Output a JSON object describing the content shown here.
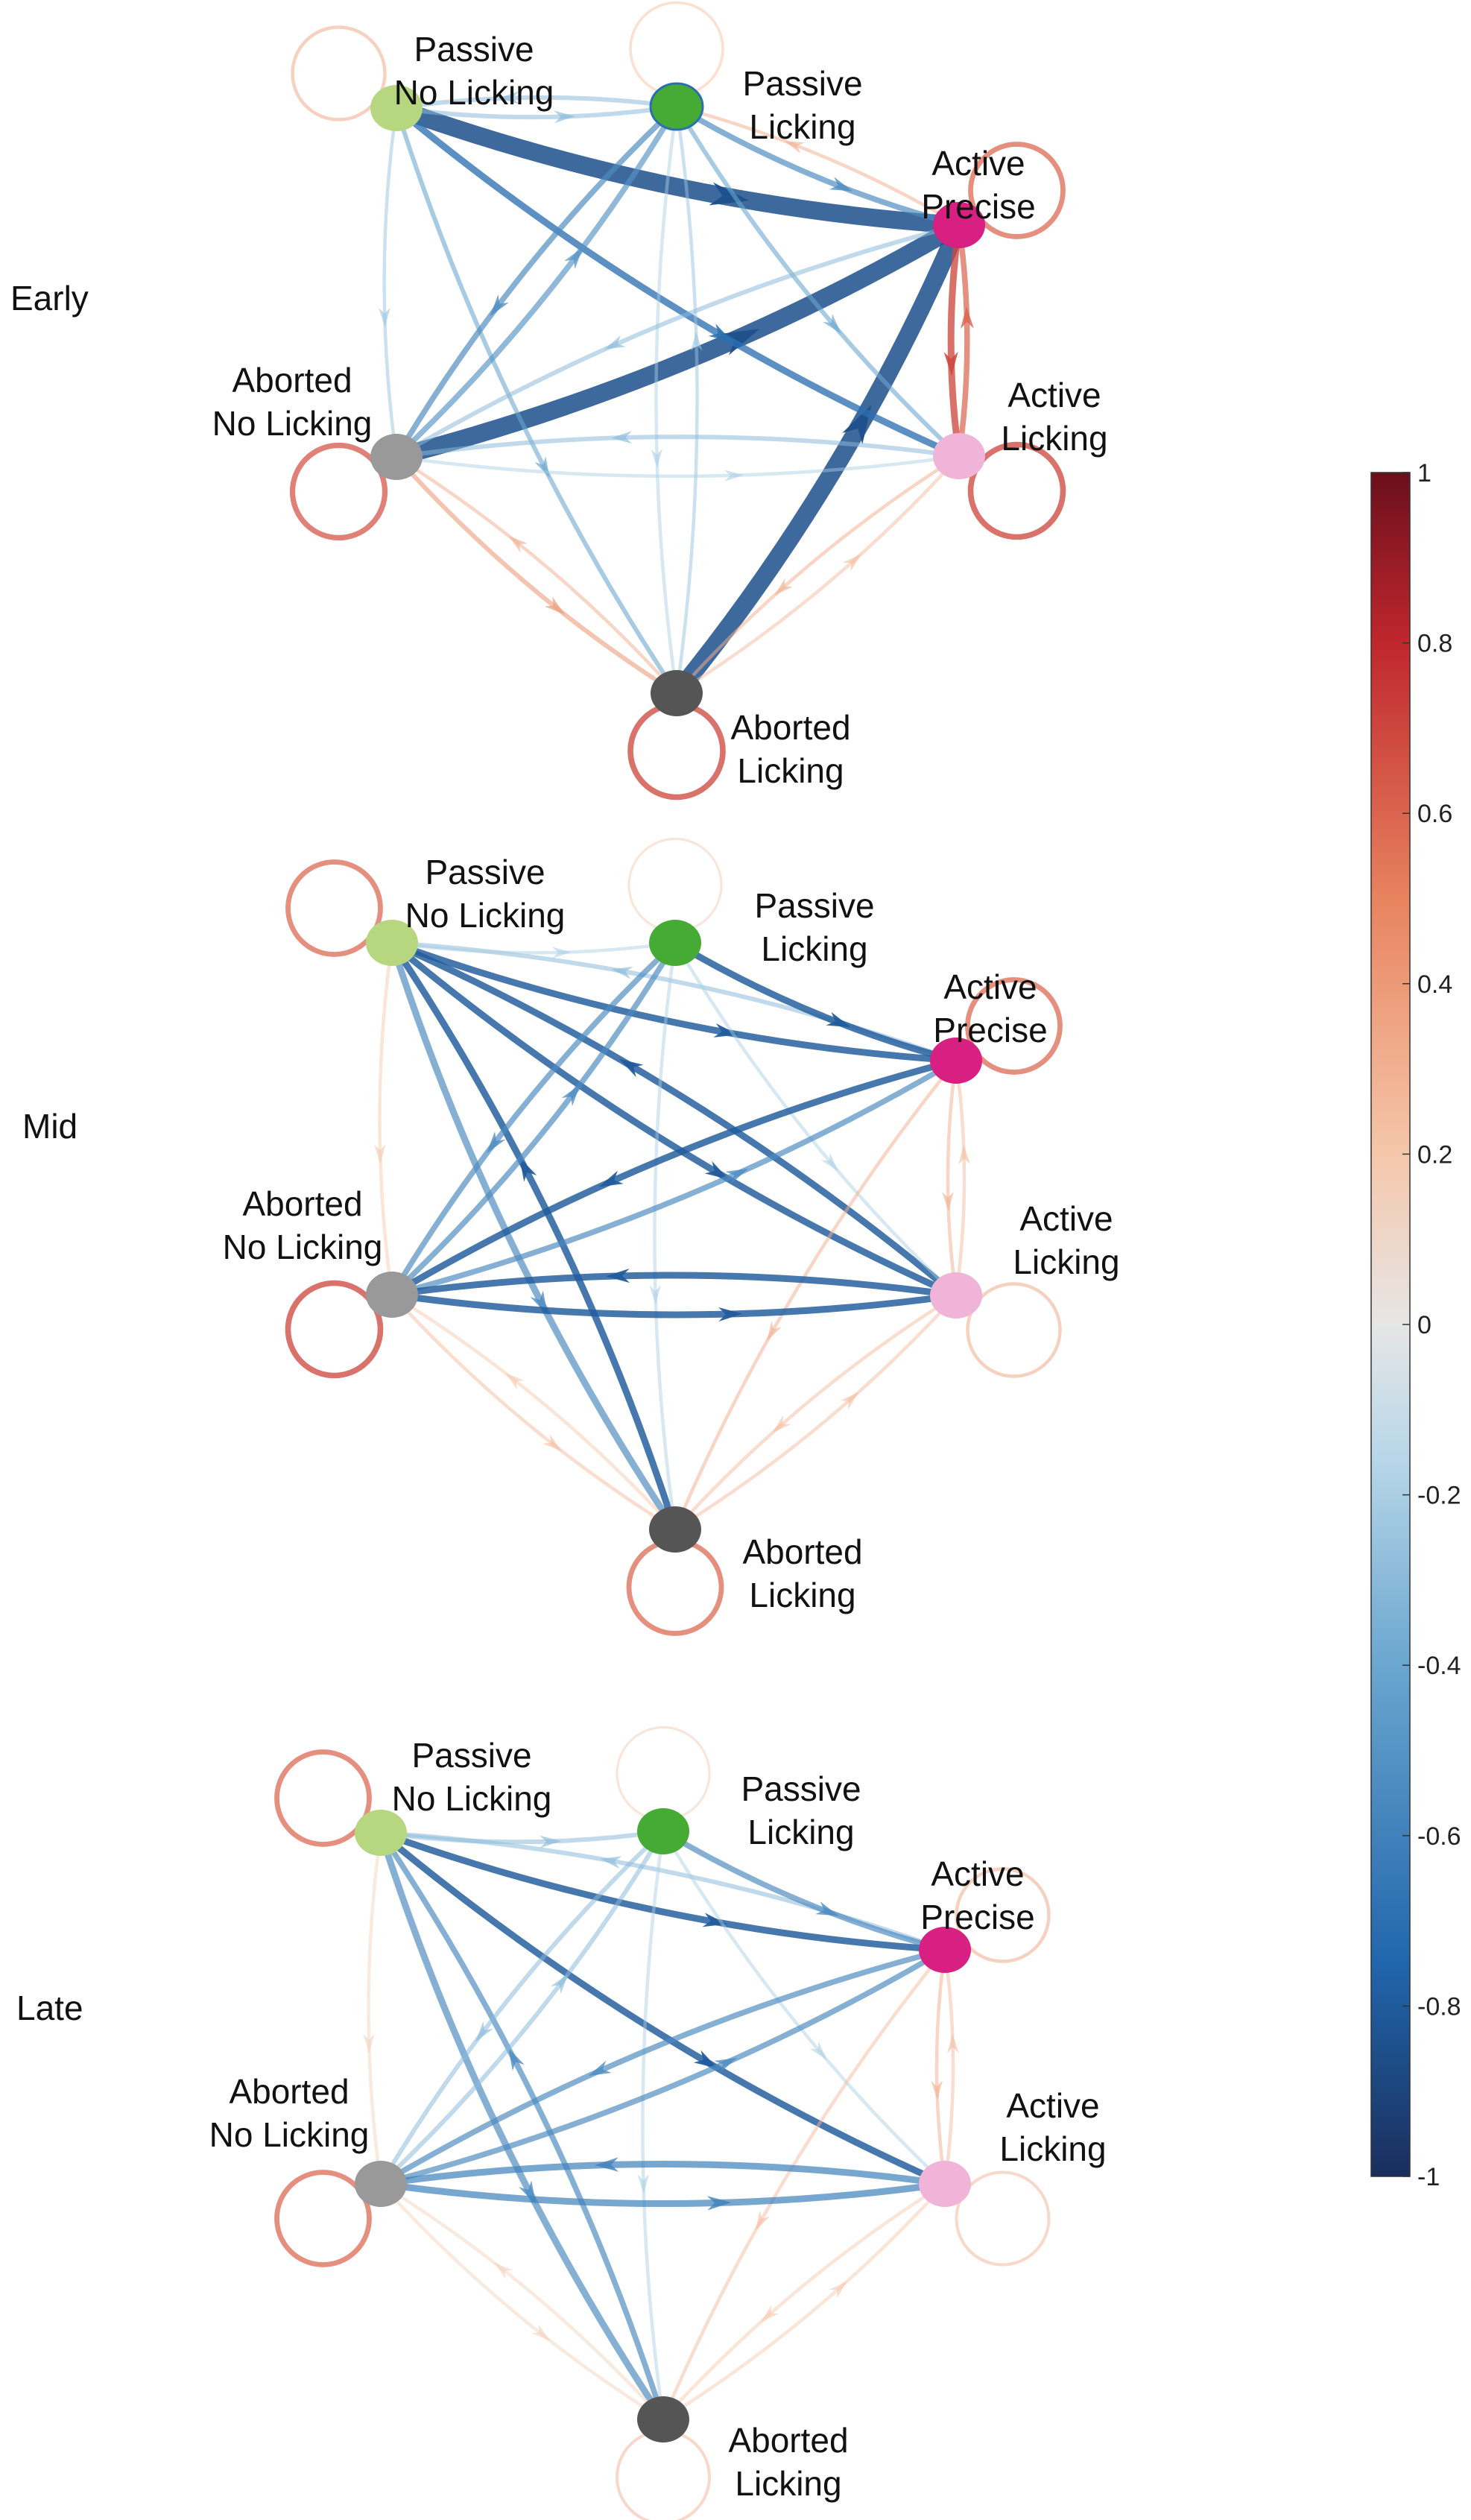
{
  "nodes": [
    {
      "id": "pnl",
      "lines": [
        "Passive",
        "No Licking"
      ],
      "color": "#b6d77f"
    },
    {
      "id": "pl",
      "lines": [
        "Passive",
        "Licking"
      ],
      "color": "#45ab34"
    },
    {
      "id": "ap",
      "lines": [
        "Active",
        "Precise"
      ],
      "color": "#d81f82"
    },
    {
      "id": "al",
      "lines": [
        "Active",
        "Licking"
      ],
      "color": "#efb4d7"
    },
    {
      "id": "aln",
      "lines": [
        "Aborted",
        "Licking"
      ],
      "color": "#555555"
    },
    {
      "id": "anl",
      "lines": [
        "Aborted",
        "No Licking"
      ],
      "color": "#999999"
    }
  ],
  "panels": [
    {
      "label": "Early",
      "self_loops": {
        "pnl": 0.3,
        "pl": 0.2,
        "ap": 0.6,
        "al": 0.7,
        "aln": 0.7,
        "anl": 0.65
      },
      "edges": [
        {
          "from": "pnl",
          "to": "ap",
          "value": -0.85,
          "weight": 8
        },
        {
          "from": "anl",
          "to": "ap",
          "value": -0.85,
          "weight": 8
        },
        {
          "from": "aln",
          "to": "ap",
          "value": -0.85,
          "weight": 8
        },
        {
          "from": "pnl",
          "to": "al",
          "value": -0.7,
          "weight": 3
        },
        {
          "from": "pnl",
          "to": "pl",
          "value": -0.3,
          "weight": 2
        },
        {
          "from": "pl",
          "to": "pnl",
          "value": -0.3,
          "weight": 2
        },
        {
          "from": "pnl",
          "to": "anl",
          "value": -0.25,
          "weight": 1.5
        },
        {
          "from": "pnl",
          "to": "aln",
          "value": -0.4,
          "weight": 2
        },
        {
          "from": "pl",
          "to": "ap",
          "value": -0.55,
          "weight": 2.5
        },
        {
          "from": "ap",
          "to": "pl",
          "value": 0.3,
          "weight": 1.5
        },
        {
          "from": "pl",
          "to": "anl",
          "value": -0.55,
          "weight": 2.5
        },
        {
          "from": "anl",
          "to": "pl",
          "value": -0.5,
          "weight": 2.5
        },
        {
          "from": "pl",
          "to": "al",
          "value": -0.4,
          "weight": 2
        },
        {
          "from": "pl",
          "to": "aln",
          "value": -0.2,
          "weight": 1.5
        },
        {
          "from": "aln",
          "to": "pl",
          "value": -0.25,
          "weight": 1.5
        },
        {
          "from": "ap",
          "to": "al",
          "value": 0.7,
          "weight": 3
        },
        {
          "from": "al",
          "to": "ap",
          "value": 0.6,
          "weight": 2.5
        },
        {
          "from": "ap",
          "to": "anl",
          "value": -0.3,
          "weight": 2
        },
        {
          "from": "al",
          "to": "anl",
          "value": -0.3,
          "weight": 2
        },
        {
          "from": "anl",
          "to": "al",
          "value": -0.2,
          "weight": 1.5
        },
        {
          "from": "al",
          "to": "aln",
          "value": 0.3,
          "weight": 1.5
        },
        {
          "from": "aln",
          "to": "al",
          "value": 0.25,
          "weight": 1.5
        },
        {
          "from": "anl",
          "to": "aln",
          "value": 0.4,
          "weight": 2
        },
        {
          "from": "aln",
          "to": "anl",
          "value": 0.3,
          "weight": 1.5
        }
      ]
    },
    {
      "label": "Mid",
      "self_loops": {
        "pnl": 0.6,
        "pl": 0.15,
        "ap": 0.6,
        "al": 0.3,
        "aln": 0.6,
        "anl": 0.7
      },
      "edges": [
        {
          "from": "pnl",
          "to": "ap",
          "value": -0.8,
          "weight": 3
        },
        {
          "from": "ap",
          "to": "pnl",
          "value": -0.3,
          "weight": 2
        },
        {
          "from": "pnl",
          "to": "al",
          "value": -0.8,
          "weight": 3
        },
        {
          "from": "al",
          "to": "pnl",
          "value": -0.8,
          "weight": 3
        },
        {
          "from": "pnl",
          "to": "pl",
          "value": -0.2,
          "weight": 1.5
        },
        {
          "from": "pnl",
          "to": "aln",
          "value": -0.55,
          "weight": 3
        },
        {
          "from": "aln",
          "to": "pnl",
          "value": -0.8,
          "weight": 3
        },
        {
          "from": "pnl",
          "to": "anl",
          "value": 0.2,
          "weight": 1.5
        },
        {
          "from": "pl",
          "to": "ap",
          "value": -0.8,
          "weight": 3
        },
        {
          "from": "pl",
          "to": "anl",
          "value": -0.55,
          "weight": 2.5
        },
        {
          "from": "anl",
          "to": "pl",
          "value": -0.55,
          "weight": 2.5
        },
        {
          "from": "pl",
          "to": "aln",
          "value": -0.2,
          "weight": 1.5
        },
        {
          "from": "pl",
          "to": "al",
          "value": -0.2,
          "weight": 1.5
        },
        {
          "from": "ap",
          "to": "al",
          "value": 0.3,
          "weight": 1.5
        },
        {
          "from": "al",
          "to": "ap",
          "value": 0.25,
          "weight": 1.5
        },
        {
          "from": "ap",
          "to": "anl",
          "value": -0.8,
          "weight": 3
        },
        {
          "from": "anl",
          "to": "ap",
          "value": -0.55,
          "weight": 2.5
        },
        {
          "from": "ap",
          "to": "aln",
          "value": 0.3,
          "weight": 1.5
        },
        {
          "from": "al",
          "to": "anl",
          "value": -0.8,
          "weight": 3
        },
        {
          "from": "anl",
          "to": "al",
          "value": -0.8,
          "weight": 3
        },
        {
          "from": "al",
          "to": "aln",
          "value": 0.25,
          "weight": 1.5
        },
        {
          "from": "aln",
          "to": "al",
          "value": 0.25,
          "weight": 1.5
        },
        {
          "from": "anl",
          "to": "aln",
          "value": 0.25,
          "weight": 1.5
        },
        {
          "from": "aln",
          "to": "anl",
          "value": 0.2,
          "weight": 1.5
        }
      ]
    },
    {
      "label": "Late",
      "self_loops": {
        "pnl": 0.6,
        "pl": 0.15,
        "ap": 0.3,
        "al": 0.25,
        "aln": 0.25,
        "anl": 0.6
      },
      "edges": [
        {
          "from": "pnl",
          "to": "ap",
          "value": -0.8,
          "weight": 3
        },
        {
          "from": "ap",
          "to": "pnl",
          "value": -0.3,
          "weight": 2
        },
        {
          "from": "pnl",
          "to": "al",
          "value": -0.8,
          "weight": 3
        },
        {
          "from": "pnl",
          "to": "pl",
          "value": -0.3,
          "weight": 2
        },
        {
          "from": "pnl",
          "to": "aln",
          "value": -0.55,
          "weight": 3
        },
        {
          "from": "aln",
          "to": "pnl",
          "value": -0.55,
          "weight": 2.5
        },
        {
          "from": "pnl",
          "to": "anl",
          "value": 0.15,
          "weight": 1.5
        },
        {
          "from": "pl",
          "to": "ap",
          "value": -0.55,
          "weight": 2.5
        },
        {
          "from": "pl",
          "to": "anl",
          "value": -0.3,
          "weight": 2
        },
        {
          "from": "anl",
          "to": "pl",
          "value": -0.3,
          "weight": 2
        },
        {
          "from": "pl",
          "to": "aln",
          "value": -0.2,
          "weight": 1.5
        },
        {
          "from": "pl",
          "to": "al",
          "value": -0.2,
          "weight": 1.5
        },
        {
          "from": "ap",
          "to": "al",
          "value": 0.3,
          "weight": 1.5
        },
        {
          "from": "al",
          "to": "ap",
          "value": 0.25,
          "weight": 1.5
        },
        {
          "from": "ap",
          "to": "anl",
          "value": -0.55,
          "weight": 2.5
        },
        {
          "from": "anl",
          "to": "ap",
          "value": -0.55,
          "weight": 2.5
        },
        {
          "from": "ap",
          "to": "aln",
          "value": 0.25,
          "weight": 1.5
        },
        {
          "from": "al",
          "to": "anl",
          "value": -0.6,
          "weight": 3
        },
        {
          "from": "anl",
          "to": "al",
          "value": -0.6,
          "weight": 3
        },
        {
          "from": "al",
          "to": "aln",
          "value": 0.2,
          "weight": 1.5
        },
        {
          "from": "aln",
          "to": "al",
          "value": 0.2,
          "weight": 1.5
        },
        {
          "from": "anl",
          "to": "aln",
          "value": 0.15,
          "weight": 1.5
        },
        {
          "from": "aln",
          "to": "anl",
          "value": 0.15,
          "weight": 1.5
        }
      ]
    }
  ],
  "colorbar": {
    "min": -1,
    "max": 1,
    "ticks": [
      "1",
      "0.8",
      "0.6",
      "0.4",
      "0.2",
      "0",
      "-0.2",
      "-0.4",
      "-0.6",
      "-0.8",
      "-1"
    ],
    "stops": [
      "#1a2e5c",
      "#2166ac",
      "#6aa6cf",
      "#b7d6e8",
      "#e6e6e6",
      "#f5c7aa",
      "#e8835f",
      "#c0272d",
      "#6b0f1d"
    ]
  }
}
